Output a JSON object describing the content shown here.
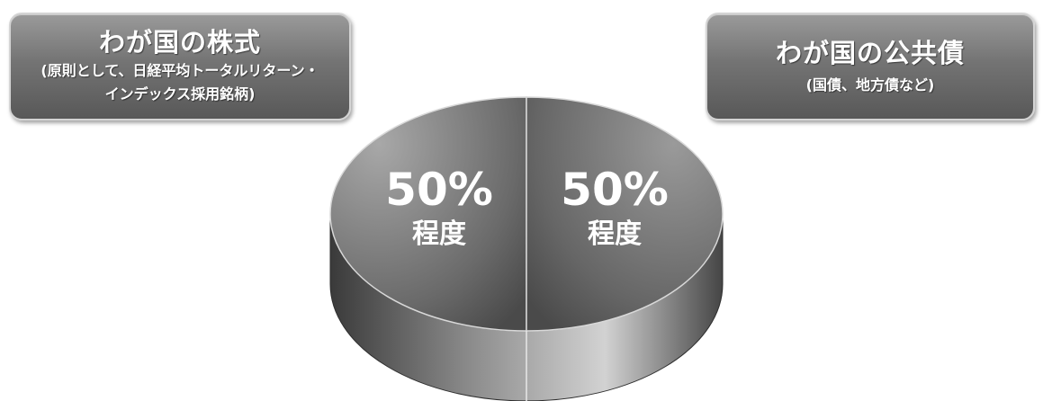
{
  "colors": {
    "box_fill": "#747474",
    "box_border": "#d4d4d4",
    "pie_top_light": "#9c9c9c",
    "pie_top_dark": "#5e5e5e",
    "pie_side_dark": "#3a3a3a",
    "pie_side_light": "#cfcfcf",
    "text": "#ffffff"
  },
  "labels": {
    "left": {
      "title": "わが国の株式",
      "subtitle_line1": "(原則として、日経平均トータルリターン・",
      "subtitle_line2": "インデックス採用銘柄)"
    },
    "right": {
      "title": "わが国の公共債",
      "subtitle": "(国債、地方債など)"
    }
  },
  "chart_data": {
    "type": "pie",
    "categories": [
      "わが国の株式",
      "わが国の公共債"
    ],
    "values": [
      50,
      50
    ],
    "slice_labels": [
      {
        "percent": "50%",
        "note": "程度"
      },
      {
        "percent": "50%",
        "note": "程度"
      }
    ],
    "style": "3d"
  }
}
